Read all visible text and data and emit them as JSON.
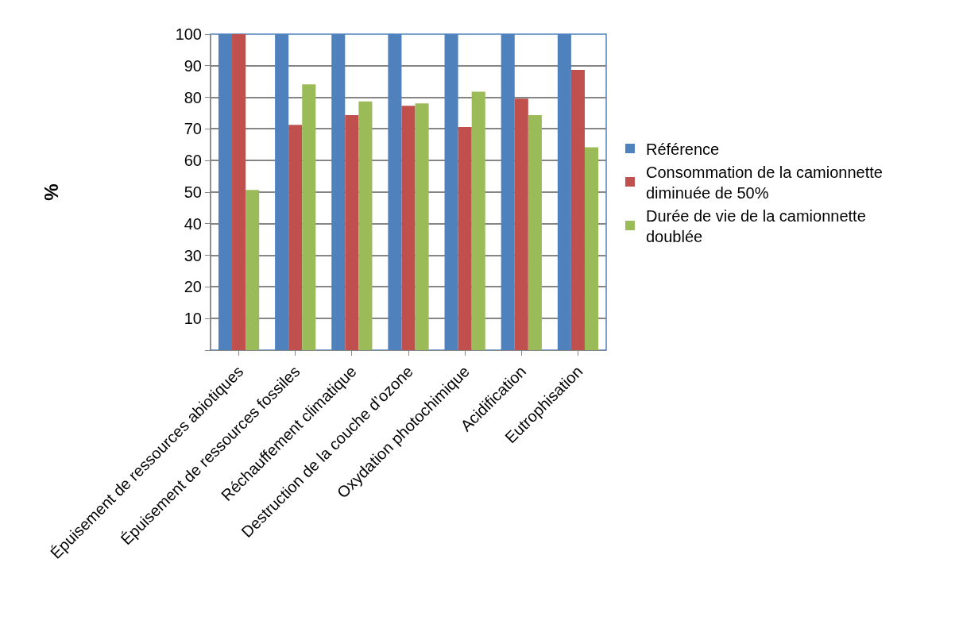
{
  "chart_data": {
    "type": "bar",
    "ylabel": "%",
    "categories": [
      "Épuisement de ressources abiotiques",
      "Épuisement de ressources fossiles",
      "Réchauffement climatique",
      "Destruction de la couche d’ozone",
      "Oxydation photochimique",
      "Acidification",
      "Eutrophisation"
    ],
    "series": [
      {
        "name": "Référence",
        "color": "#4f81bd",
        "values": [
          100,
          100,
          100,
          100,
          100,
          100,
          100
        ]
      },
      {
        "name": "Consommation de la camionnette diminuée de 50%",
        "color": "#c0504d",
        "values": [
          100,
          71.3,
          74.4,
          77.3,
          70.6,
          79.6,
          88.7
        ]
      },
      {
        "name": "Durée de vie de la camionnette doublée",
        "color": "#9bbb59",
        "values": [
          50.7,
          84.1,
          78.7,
          78.1,
          81.8,
          74.4,
          64.2
        ]
      }
    ],
    "ylim": [
      0,
      100
    ],
    "yticks": [
      {
        "value": 0,
        "label": null
      },
      10,
      20,
      30,
      40,
      50,
      60,
      70,
      80,
      90,
      100
    ],
    "grid": "y",
    "legend": "right"
  }
}
